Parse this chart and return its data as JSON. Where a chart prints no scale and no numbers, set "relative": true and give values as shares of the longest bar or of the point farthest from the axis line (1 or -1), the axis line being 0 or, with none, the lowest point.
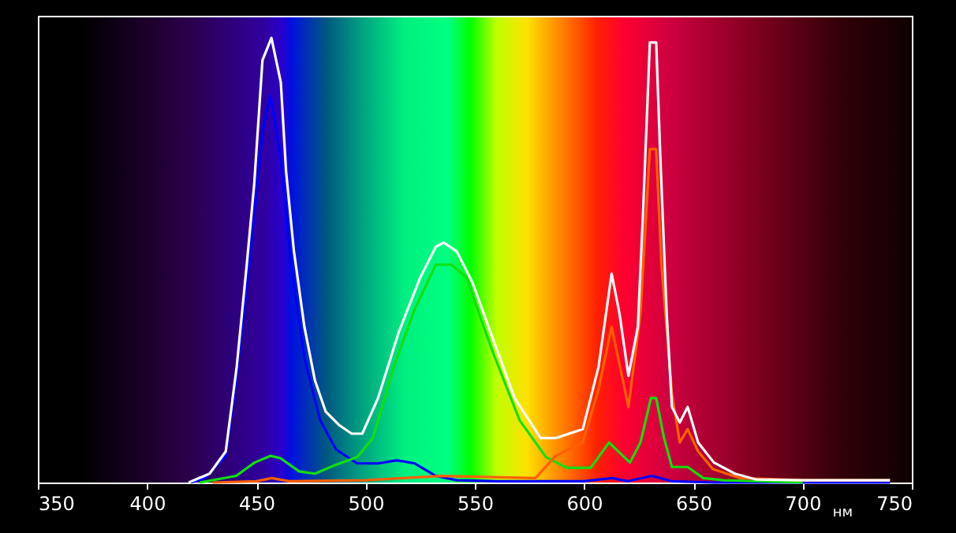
{
  "chart_data": {
    "type": "line",
    "relative": true,
    "xlabel": "нм",
    "xlim": [
      350,
      750
    ],
    "xticks": [
      350,
      400,
      450,
      500,
      550,
      600,
      650,
      700,
      750
    ],
    "grid": false,
    "marker": "none",
    "line_style": "solid",
    "series": [
      {
        "color": "#0000ff",
        "x": [
          420,
          426.4,
          436,
          440.8,
          446.8,
          452.8,
          456.4,
          461.2,
          466,
          472,
          479.2,
          486.4,
          496.1,
          505.7,
          514.1,
          522.5,
          532.1,
          541.7,
          560,
          600,
          613,
          620,
          631,
          640,
          660,
          700,
          740
        ],
        "values": [
          0,
          0.01,
          0.06,
          0.23,
          0.49,
          0.79,
          0.87,
          0.73,
          0.49,
          0.28,
          0.14,
          0.075,
          0.043,
          0.043,
          0.05,
          0.043,
          0.015,
          0.005,
          0.003,
          0.003,
          0.01,
          0.003,
          0.015,
          0.003,
          0,
          0,
          0
        ]
      },
      {
        "color": "#10e010",
        "x": [
          424,
          440.8,
          449.2,
          456.4,
          461,
          469.6,
          476.8,
          486.4,
          496.1,
          503.3,
          512.9,
          522.5,
          532.1,
          539.3,
          546.5,
          549,
          558.5,
          570.5,
          582.6,
          592.2,
          603,
          611.4,
          621,
          625.8,
          630.6,
          633,
          636.6,
          640.2,
          647.4,
          654.6,
          664,
          700
        ],
        "values": [
          0,
          0.015,
          0.045,
          0.06,
          0.055,
          0.025,
          0.02,
          0.04,
          0.057,
          0.1,
          0.26,
          0.39,
          0.49,
          0.49,
          0.46,
          0.42,
          0.29,
          0.14,
          0.057,
          0.033,
          0.033,
          0.09,
          0.045,
          0.09,
          0.19,
          0.19,
          0.1,
          0.035,
          0.035,
          0.01,
          0.005,
          0
        ]
      },
      {
        "color": "#ff6000",
        "x": [
          430,
          450,
          457,
          465,
          500,
          534.5,
          577.7,
          587,
          599.4,
          606.6,
          612.6,
          620.3,
          625.8,
          630.1,
          633,
          635.4,
          640.2,
          643.8,
          647.4,
          652.2,
          659,
          671.4,
          700,
          740
        ],
        "values": [
          0,
          0.003,
          0.01,
          0.003,
          0.005,
          0.015,
          0.01,
          0.06,
          0.09,
          0.21,
          0.35,
          0.17,
          0.38,
          0.75,
          0.75,
          0.49,
          0.2,
          0.09,
          0.12,
          0.07,
          0.03,
          0.01,
          0.005,
          0.005
        ]
      },
      {
        "color": "#ffffff",
        "x": [
          419,
          428.6,
          436,
          441,
          445.6,
          449,
          452.8,
          456.9,
          461.2,
          463.6,
          467.2,
          472,
          476.8,
          481.7,
          487.7,
          493.6,
          498.5,
          505.7,
          515.3,
          524.9,
          532.1,
          535.7,
          541.7,
          548.9,
          558.5,
          568.2,
          580.1,
          587,
          599.4,
          606.6,
          612.6,
          616.2,
          620.3,
          624.6,
          627,
          630.1,
          633,
          634.9,
          637.8,
          640.2,
          643.8,
          647.4,
          652.2,
          659.4,
          669,
          678.6,
          700,
          740
        ],
        "values": [
          0,
          0.02,
          0.07,
          0.26,
          0.49,
          0.67,
          0.95,
          1,
          0.9,
          0.7,
          0.52,
          0.35,
          0.23,
          0.16,
          0.13,
          0.11,
          0.11,
          0.19,
          0.34,
          0.46,
          0.53,
          0.54,
          0.52,
          0.45,
          0.32,
          0.19,
          0.1,
          0.1,
          0.12,
          0.26,
          0.47,
          0.38,
          0.24,
          0.35,
          0.61,
          0.99,
          0.99,
          0.73,
          0.38,
          0.17,
          0.135,
          0.17,
          0.09,
          0.045,
          0.02,
          0.007,
          0.005,
          0.005
        ]
      }
    ]
  }
}
